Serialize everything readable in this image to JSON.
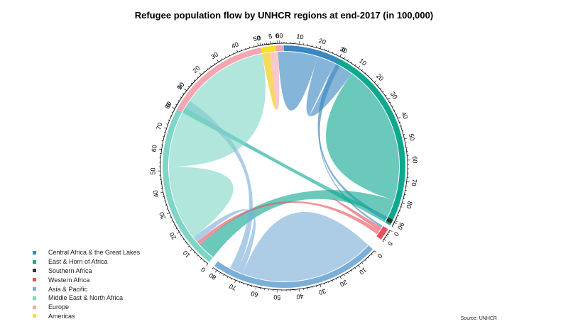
{
  "title": "Refugee population flow by UNHCR regions at end-2017 (in 100,000)",
  "source": "Source: UNHCR",
  "chart_data": {
    "type": "chord",
    "unit": "100,000",
    "regions": [
      {
        "name": "Central Africa & the Great Lakes",
        "color": "#3a87c2",
        "total": 32,
        "ticks": [
          "0",
          "10",
          "20",
          "30"
        ]
      },
      {
        "name": "East & Horn of Africa",
        "color": "#0ea88f",
        "total": 92,
        "ticks": [
          "0",
          "10",
          "20",
          "30",
          "40",
          "50",
          "60",
          "70",
          "80",
          "90"
        ]
      },
      {
        "name": "Southern Africa",
        "color": "#333333",
        "total": 2,
        "ticks": []
      },
      {
        "name": "Western Africa",
        "color": "#e8505b",
        "total": 6,
        "ticks": [
          "0",
          "5"
        ]
      },
      {
        "name": "Asia & Pacific",
        "color": "#7aafd8",
        "total": 82,
        "ticks": [
          "0",
          "10",
          "20",
          "30",
          "40",
          "50",
          "60",
          "70",
          "80"
        ]
      },
      {
        "name": "Middle East & North Africa",
        "color": "#7fd6c6",
        "total": 96,
        "ticks": [
          "0",
          "10",
          "20",
          "30",
          "40",
          "50",
          "60",
          "70",
          "80",
          "90"
        ]
      },
      {
        "name": "Europe",
        "color": "#f4a6b1",
        "total": 62,
        "ticks": [
          "0",
          "10",
          "20",
          "30",
          "40",
          "50",
          "60"
        ]
      },
      {
        "name": "Americas",
        "color": "#f5e51b",
        "total": 7,
        "ticks": [
          "0",
          "5"
        ]
      }
    ],
    "flows": [
      {
        "from": 0,
        "to": 0,
        "value": 20
      },
      {
        "from": 0,
        "to": 1,
        "value": 9
      },
      {
        "from": 0,
        "to": 2,
        "value": 2
      },
      {
        "from": 0,
        "to": 3,
        "value": 1
      },
      {
        "from": 1,
        "to": 1,
        "value": 71
      },
      {
        "from": 1,
        "to": 5,
        "value": 9
      },
      {
        "from": 1,
        "to": 6,
        "value": 3
      },
      {
        "from": 3,
        "to": 3,
        "value": 2
      },
      {
        "from": 3,
        "to": 5,
        "value": 2
      },
      {
        "from": 4,
        "to": 4,
        "value": 68
      },
      {
        "from": 4,
        "to": 5,
        "value": 3
      },
      {
        "from": 4,
        "to": 6,
        "value": 4
      },
      {
        "from": 5,
        "to": 5,
        "value": 38
      },
      {
        "from": 5,
        "to": 6,
        "value": 44
      },
      {
        "from": 6,
        "to": 6,
        "value": 8
      },
      {
        "from": 7,
        "to": 7,
        "value": 4
      }
    ]
  }
}
